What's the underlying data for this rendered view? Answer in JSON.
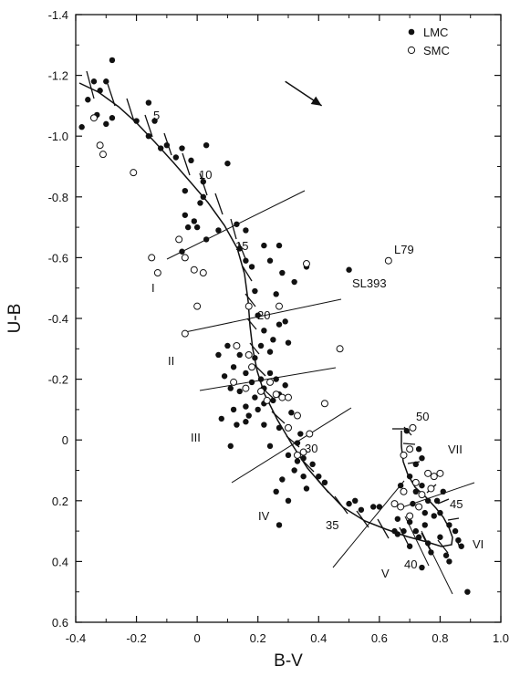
{
  "chart_data": {
    "type": "scatter",
    "xlabel": "B-V",
    "ylabel": "U-B",
    "xlim": [
      -0.4,
      1.0
    ],
    "ylim": [
      0.6,
      -1.4
    ],
    "y_axis_inverted": true,
    "grid": false,
    "legend_position": "top-right",
    "x_ticks": [
      "-0.4",
      "-0.2",
      "0",
      "0.2",
      "0.4",
      "0.6",
      "0.8",
      "1.0"
    ],
    "x_tick_values": [
      -0.4,
      -0.2,
      0.0,
      0.2,
      0.4,
      0.6,
      0.8,
      1.0
    ],
    "y_ticks": [
      "-1.4",
      "-1.2",
      "-1.0",
      "-0.8",
      "-0.6",
      "-0.4",
      "-0.2",
      "0",
      "0.2",
      "0.4",
      "0.6"
    ],
    "y_tick_values": [
      -1.4,
      -1.2,
      -1.0,
      -0.8,
      -0.6,
      -0.4,
      -0.2,
      0.0,
      0.2,
      0.4,
      0.6
    ],
    "series": [
      {
        "name": "LMC",
        "marker": "filled-circle",
        "color": "#111111",
        "points": [
          [
            -0.28,
            -1.25
          ],
          [
            -0.3,
            -1.18
          ],
          [
            -0.34,
            -1.18
          ],
          [
            -0.32,
            -1.15
          ],
          [
            -0.36,
            -1.12
          ],
          [
            -0.38,
            -1.03
          ],
          [
            -0.33,
            -1.07
          ],
          [
            -0.3,
            -1.04
          ],
          [
            -0.28,
            -1.06
          ],
          [
            -0.2,
            -1.05
          ],
          [
            -0.16,
            -1.11
          ],
          [
            -0.14,
            -1.05
          ],
          [
            -0.16,
            -1.0
          ],
          [
            -0.12,
            -0.96
          ],
          [
            -0.1,
            -0.97
          ],
          [
            -0.07,
            -0.93
          ],
          [
            -0.05,
            -0.96
          ],
          [
            -0.02,
            -0.92
          ],
          [
            0.03,
            -0.97
          ],
          [
            -0.04,
            -0.82
          ],
          [
            0.02,
            -0.85
          ],
          [
            0.02,
            -0.8
          ],
          [
            0.01,
            -0.78
          ],
          [
            0.1,
            -0.91
          ],
          [
            -0.04,
            -0.74
          ],
          [
            -0.03,
            -0.7
          ],
          [
            -0.01,
            -0.72
          ],
          [
            0.03,
            -0.66
          ],
          [
            0.0,
            -0.7
          ],
          [
            -0.05,
            -0.62
          ],
          [
            0.07,
            -0.69
          ],
          [
            0.13,
            -0.71
          ],
          [
            0.16,
            -0.69
          ],
          [
            0.14,
            -0.63
          ],
          [
            0.16,
            -0.59
          ],
          [
            0.22,
            -0.64
          ],
          [
            0.24,
            -0.59
          ],
          [
            0.18,
            -0.57
          ],
          [
            0.28,
            -0.55
          ],
          [
            0.32,
            -0.52
          ],
          [
            0.19,
            -0.49
          ],
          [
            0.27,
            -0.64
          ],
          [
            0.36,
            -0.57
          ],
          [
            0.5,
            -0.56
          ],
          [
            0.17,
            -0.44
          ],
          [
            0.2,
            -0.41
          ],
          [
            0.22,
            -0.36
          ],
          [
            0.25,
            -0.33
          ],
          [
            0.21,
            -0.31
          ],
          [
            0.27,
            -0.38
          ],
          [
            0.29,
            -0.39
          ],
          [
            0.3,
            -0.32
          ],
          [
            0.24,
            -0.29
          ],
          [
            0.19,
            -0.27
          ],
          [
            0.14,
            -0.28
          ],
          [
            0.12,
            -0.24
          ],
          [
            0.16,
            -0.22
          ],
          [
            0.18,
            -0.19
          ],
          [
            0.14,
            -0.16
          ],
          [
            0.21,
            -0.2
          ],
          [
            0.24,
            -0.22
          ],
          [
            0.26,
            -0.2
          ],
          [
            0.22,
            -0.17
          ],
          [
            0.19,
            -0.14
          ],
          [
            0.16,
            -0.11
          ],
          [
            0.22,
            -0.12
          ],
          [
            0.25,
            -0.13
          ],
          [
            0.27,
            -0.15
          ],
          [
            0.29,
            -0.18
          ],
          [
            0.09,
            -0.21
          ],
          [
            0.11,
            -0.17
          ],
          [
            0.2,
            -0.1
          ],
          [
            0.22,
            -0.05
          ],
          [
            0.27,
            -0.04
          ],
          [
            0.16,
            -0.06
          ],
          [
            0.12,
            -0.1
          ],
          [
            0.31,
            -0.09
          ],
          [
            0.33,
            0.01
          ],
          [
            0.34,
            -0.02
          ],
          [
            0.24,
            0.02
          ],
          [
            0.3,
            0.05
          ],
          [
            0.33,
            0.07
          ],
          [
            0.35,
            0.06
          ],
          [
            0.32,
            0.1
          ],
          [
            0.28,
            0.13
          ],
          [
            0.35,
            0.12
          ],
          [
            0.38,
            0.08
          ],
          [
            0.4,
            0.12
          ],
          [
            0.26,
            0.17
          ],
          [
            0.36,
            0.16
          ],
          [
            0.3,
            0.2
          ],
          [
            0.27,
            0.28
          ],
          [
            0.42,
            0.14
          ],
          [
            0.52,
            0.2
          ],
          [
            0.54,
            0.23
          ],
          [
            0.5,
            0.21
          ],
          [
            0.58,
            0.22
          ],
          [
            0.6,
            0.22
          ],
          [
            0.08,
            -0.07
          ],
          [
            0.11,
            0.02
          ],
          [
            0.13,
            -0.05
          ],
          [
            0.17,
            -0.08
          ],
          [
            0.07,
            -0.28
          ],
          [
            0.1,
            -0.31
          ],
          [
            0.26,
            -0.48
          ],
          [
            0.74,
            0.06
          ],
          [
            0.72,
            0.08
          ],
          [
            0.7,
            0.12
          ],
          [
            0.67,
            0.15
          ],
          [
            0.74,
            0.15
          ],
          [
            0.72,
            0.17
          ],
          [
            0.76,
            0.2
          ],
          [
            0.79,
            0.2
          ],
          [
            0.81,
            0.17
          ],
          [
            0.78,
            0.25
          ],
          [
            0.75,
            0.28
          ],
          [
            0.72,
            0.3
          ],
          [
            0.7,
            0.27
          ],
          [
            0.68,
            0.3
          ],
          [
            0.66,
            0.31
          ],
          [
            0.73,
            0.32
          ],
          [
            0.75,
            0.24
          ],
          [
            0.8,
            0.24
          ],
          [
            0.83,
            0.28
          ],
          [
            0.85,
            0.3
          ],
          [
            0.86,
            0.33
          ],
          [
            0.8,
            0.32
          ],
          [
            0.76,
            0.34
          ],
          [
            0.82,
            0.38
          ],
          [
            0.74,
            0.42
          ],
          [
            0.89,
            0.5
          ],
          [
            0.66,
            0.26
          ],
          [
            0.71,
            0.21
          ],
          [
            0.69,
            -0.03
          ],
          [
            0.73,
            0.03
          ],
          [
            0.65,
            0.3
          ],
          [
            0.7,
            0.35
          ],
          [
            0.83,
            0.4
          ],
          [
            0.77,
            0.37
          ],
          [
            0.87,
            0.35
          ]
        ]
      },
      {
        "name": "SMC",
        "marker": "open-circle",
        "color": "#111111",
        "points": [
          [
            -0.34,
            -1.06
          ],
          [
            -0.32,
            -0.97
          ],
          [
            -0.31,
            -0.94
          ],
          [
            -0.21,
            -0.88
          ],
          [
            -0.06,
            -0.66
          ],
          [
            -0.15,
            -0.6
          ],
          [
            -0.13,
            -0.55
          ],
          [
            -0.04,
            -0.6
          ],
          [
            -0.01,
            -0.56
          ],
          [
            0.02,
            -0.55
          ],
          [
            0.0,
            -0.44
          ],
          [
            -0.04,
            -0.35
          ],
          [
            0.36,
            -0.58
          ],
          [
            0.63,
            -0.59
          ],
          [
            0.17,
            -0.44
          ],
          [
            0.27,
            -0.44
          ],
          [
            0.13,
            -0.31
          ],
          [
            0.17,
            -0.28
          ],
          [
            0.18,
            -0.24
          ],
          [
            0.12,
            -0.19
          ],
          [
            0.16,
            -0.17
          ],
          [
            0.21,
            -0.16
          ],
          [
            0.24,
            -0.19
          ],
          [
            0.23,
            -0.13
          ],
          [
            0.26,
            -0.15
          ],
          [
            0.28,
            -0.14
          ],
          [
            0.3,
            -0.14
          ],
          [
            0.47,
            -0.3
          ],
          [
            0.42,
            -0.12
          ],
          [
            0.33,
            -0.08
          ],
          [
            0.37,
            -0.02
          ],
          [
            0.33,
            0.05
          ],
          [
            0.35,
            0.04
          ],
          [
            0.3,
            -0.04
          ],
          [
            0.71,
            -0.04
          ],
          [
            0.68,
            0.05
          ],
          [
            0.7,
            0.03
          ],
          [
            0.76,
            0.11
          ],
          [
            0.78,
            0.12
          ],
          [
            0.8,
            0.11
          ],
          [
            0.72,
            0.14
          ],
          [
            0.74,
            0.18
          ],
          [
            0.77,
            0.16
          ],
          [
            0.68,
            0.17
          ],
          [
            0.67,
            0.22
          ],
          [
            0.73,
            0.22
          ],
          [
            0.7,
            0.25
          ],
          [
            0.65,
            0.21
          ]
        ]
      }
    ],
    "annotations": {
      "tick_labels": [
        "5",
        "10",
        "15",
        "20",
        "30",
        "35",
        "40",
        "45",
        "50"
      ],
      "group_labels": [
        "I",
        "II",
        "III",
        "IV",
        "V",
        "VI",
        "VII"
      ],
      "named_objects": [
        "L79",
        "SL393"
      ]
    },
    "legend": [
      {
        "label": "LMC",
        "marker": "filled-circle"
      },
      {
        "label": "SMC",
        "marker": "open-circle"
      }
    ],
    "reddening_vector": {
      "from": [
        0.29,
        -1.18
      ],
      "to": [
        0.41,
        -1.1
      ]
    }
  }
}
